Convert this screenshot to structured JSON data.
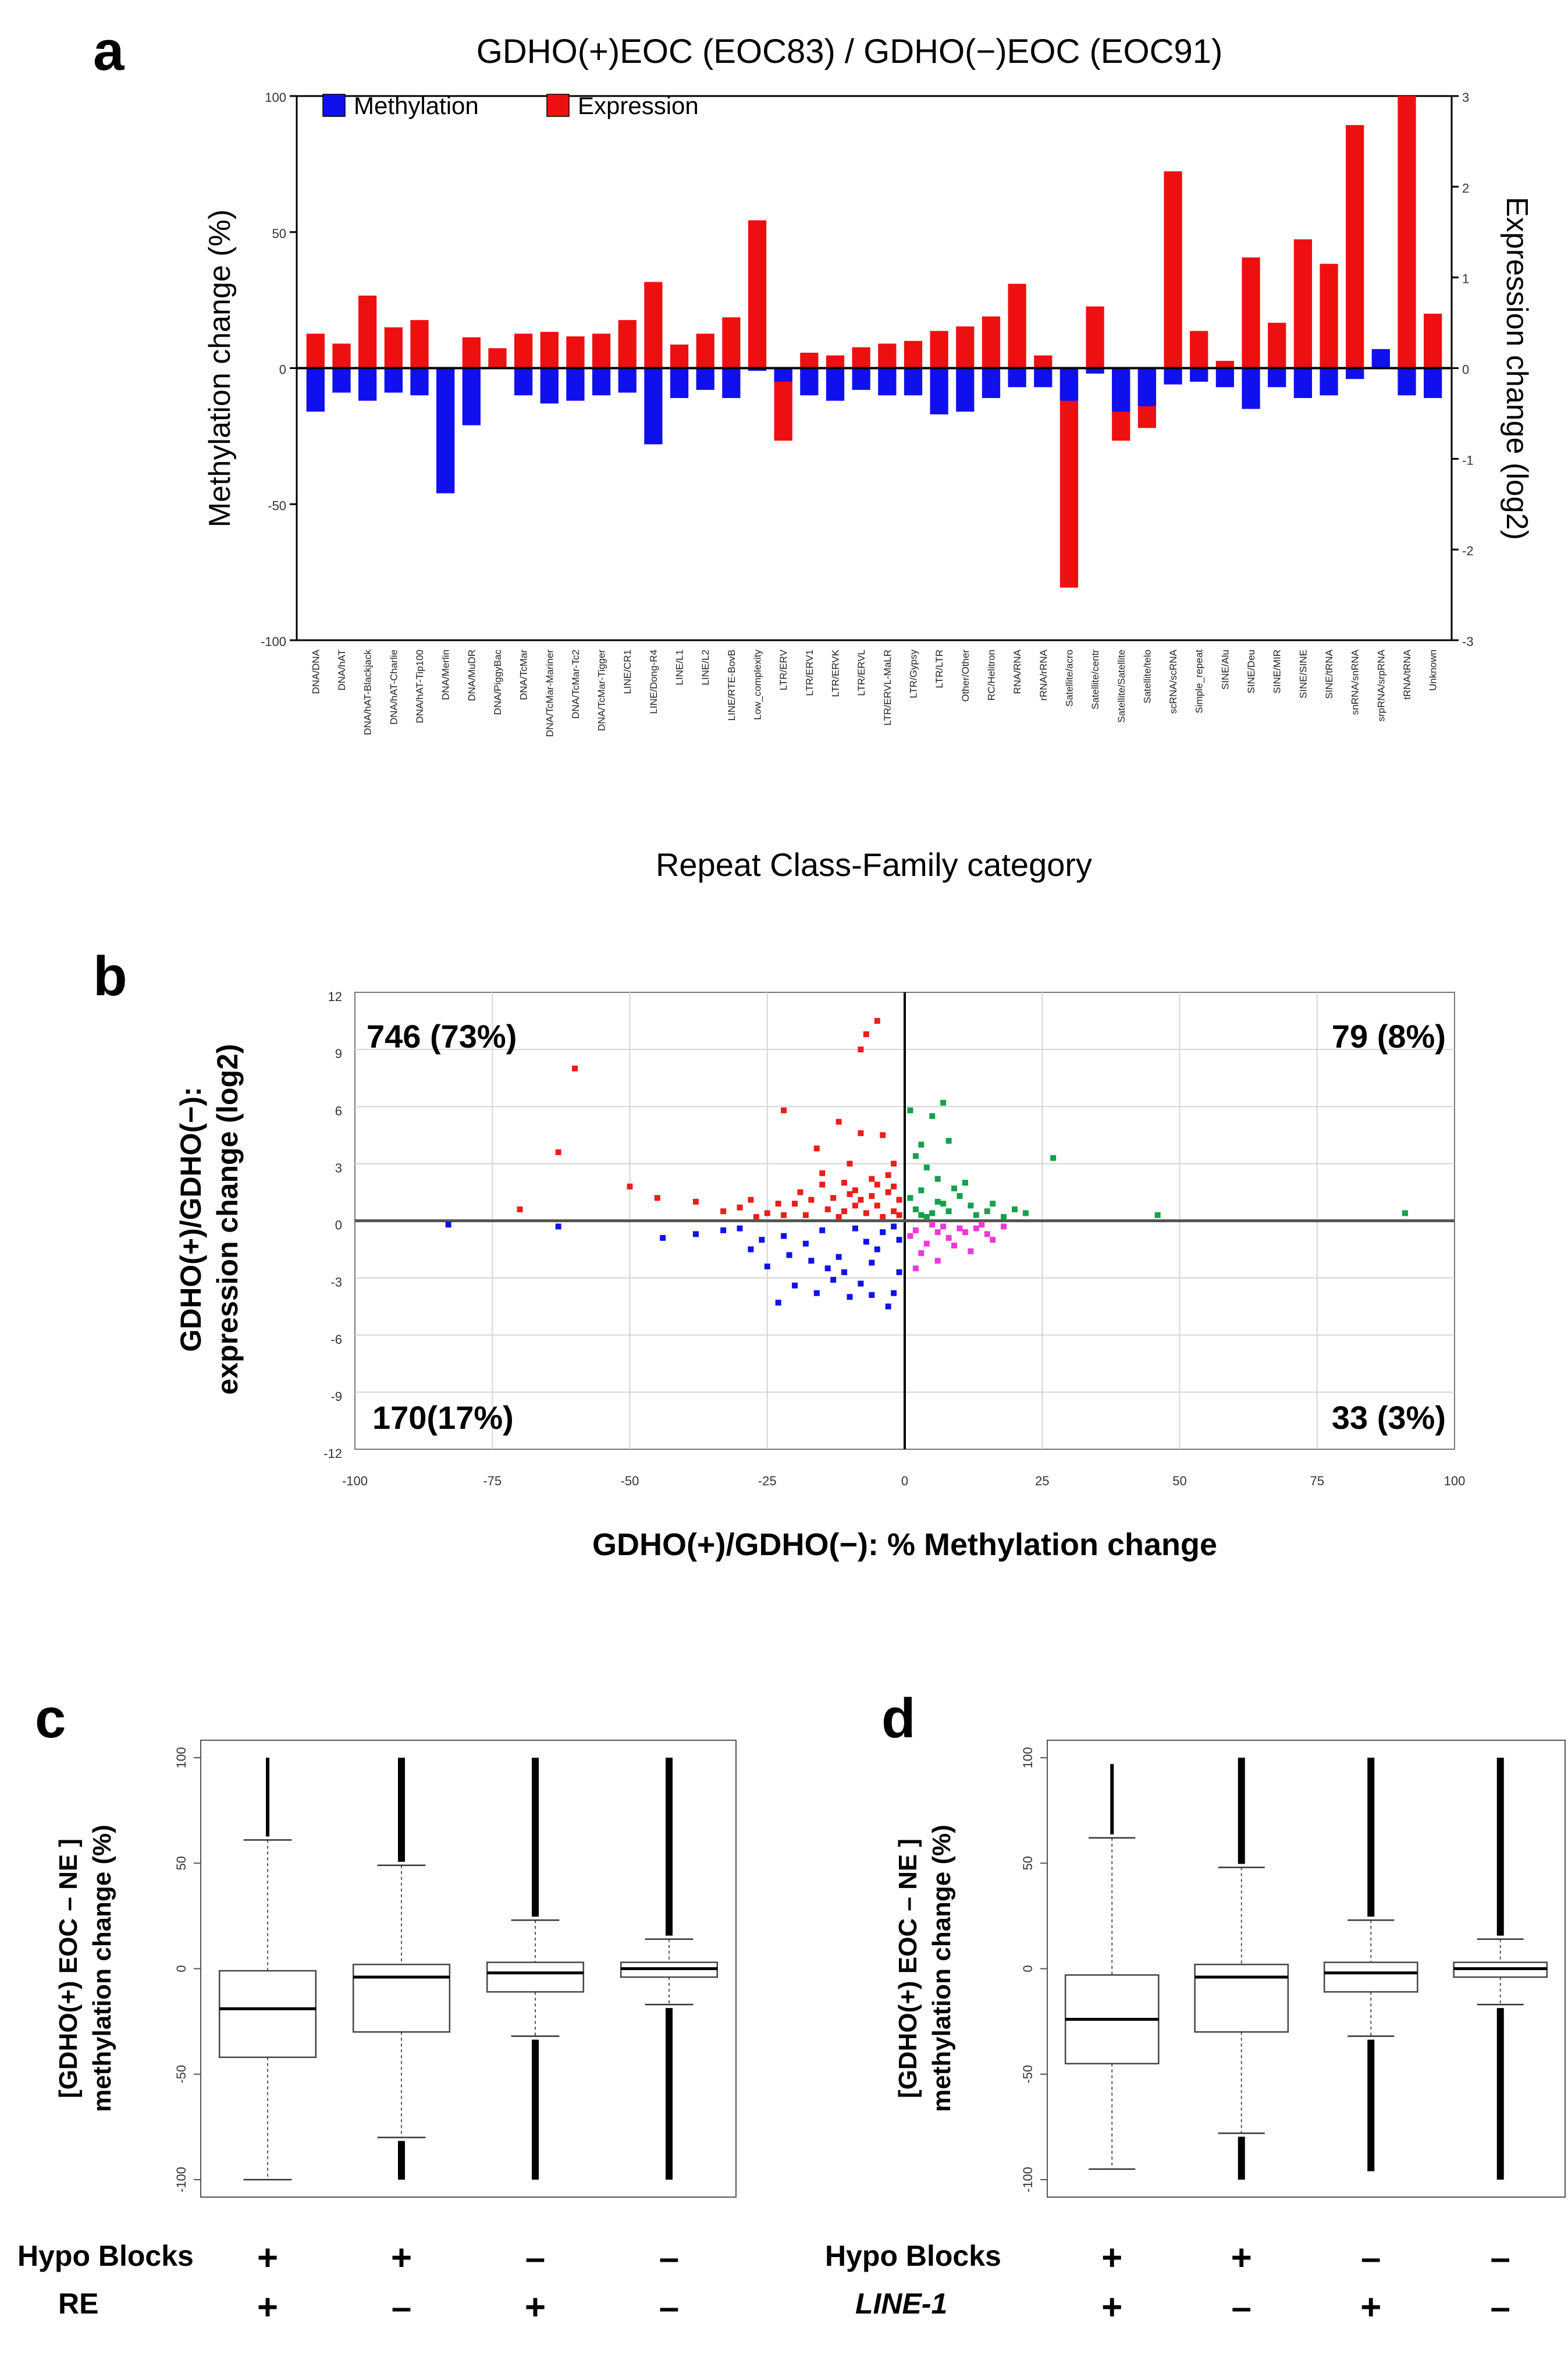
{
  "panels": {
    "a": "a",
    "b": "b",
    "c": "c",
    "d": "d"
  },
  "chart_data": [
    {
      "id": "a",
      "type": "bar",
      "title": "GDHO(+)EOC (EOC83) / GDHO(−)EOC (EOC91)",
      "xlabel": "Repeat Class-Family category",
      "ylabel": "Methylation change (%)",
      "y2label": "Expression change  (log2)",
      "ylim": [
        -100,
        100
      ],
      "y2lim": [
        -3,
        3
      ],
      "yticks": [
        100,
        50,
        0,
        -50,
        -100
      ],
      "y2ticks": [
        3,
        2,
        1,
        0,
        -1,
        -2,
        -3
      ],
      "legend": [
        "Methylation",
        "Expression"
      ],
      "colors": {
        "Methylation": "#1010ee",
        "Expression": "#ee1010"
      },
      "categories": [
        "DNA/DNA",
        "DNA/hAT",
        "DNA/hAT-Blackjack",
        "DNA/hAT-Charlie",
        "DNA/hAT-Tip100",
        "DNA/Merlin",
        "DNA/MuDR",
        "DNA/PiggyBac",
        "DNA/TcMar",
        "DNA/TcMar-Mariner",
        "DNA/TcMar-Tc2",
        "DNA/TcMar-Tigger",
        "LINE/CR1",
        "LINE/Dong-R4",
        "LINE/L1",
        "LINE/L2",
        "LINE/RTE-BovB",
        "Low_complexity",
        "LTR/ERV",
        "LTR/ERV1",
        "LTR/ERVK",
        "LTR/ERVL",
        "LTR/ERVL-MaLR",
        "LTR/Gypsy",
        "LTR/LTR",
        "Other/Other",
        "RC/Helitron",
        "RNA/RNA",
        "rRNA/rRNA",
        "Satellite/acro",
        "Satellite/centr",
        "Satellite/Satellite",
        "Satellite/telo",
        "scRNA/scRNA",
        "Simple_repeat",
        "SINE/Alu",
        "SINE/Deu",
        "SINE/MIR",
        "SINE/SINE",
        "SINE/tRNA",
        "snRNA/snRNA",
        "srpRNA/srpRNA",
        "tRNA/tRNA",
        "Unknown"
      ],
      "series": [
        {
          "name": "Methylation",
          "axis": "left",
          "values": [
            -16,
            -9,
            -12,
            -9,
            -10,
            -46,
            -21,
            0,
            -10,
            -13,
            -12,
            -10,
            -9,
            -28,
            -11,
            -8,
            -11,
            -1,
            -5,
            -10,
            -12,
            -8,
            -10,
            -10,
            -17,
            -16,
            -11,
            -7,
            -7,
            -12,
            -2,
            -16,
            -14,
            -6,
            -5,
            -7,
            -15,
            -7,
            -11,
            -10,
            -4,
            7,
            -10,
            -11
          ]
        },
        {
          "name": "Expression",
          "axis": "right",
          "values": [
            0.38,
            0.27,
            0.8,
            0.45,
            0.53,
            -1.35,
            0.34,
            0.22,
            0.38,
            0.4,
            0.35,
            0.38,
            0.53,
            0.95,
            0.26,
            0.38,
            0.56,
            1.63,
            -0.8,
            0.17,
            0.14,
            0.23,
            0.27,
            0.3,
            0.41,
            0.46,
            0.57,
            0.93,
            0.14,
            -2.42,
            0.68,
            -0.8,
            -0.66,
            2.17,
            0.41,
            0.08,
            1.22,
            0.5,
            1.42,
            1.15,
            2.68,
            0.12,
            3.0,
            0.6
          ]
        }
      ]
    },
    {
      "id": "b",
      "type": "scatter",
      "xlabel": "GDHO(+)/GDHO(−):  % Methylation change",
      "ylabel_line1": "GDHO(+)/GDHO(−):",
      "ylabel_line2": "expression change (log2)",
      "xlim": [
        -100,
        100
      ],
      "ylim": [
        -12,
        12
      ],
      "xticks": [
        -100,
        -75,
        -50,
        -25,
        0,
        25,
        50,
        75,
        100
      ],
      "yticks": [
        12,
        9,
        6,
        3,
        0,
        -3,
        -6,
        -9,
        -12
      ],
      "quadrant_labels": [
        {
          "text": "746 (73%)",
          "quadrant": "top-left",
          "color": "#ee1c1c"
        },
        {
          "text": "79 (8%)",
          "quadrant": "top-right",
          "color": "#16a04a"
        },
        {
          "text": "170(17%)",
          "quadrant": "bottom-left",
          "color": "#1a7fd0"
        },
        {
          "text": "33 (3%)",
          "quadrant": "bottom-right",
          "color": "#ee38d8"
        }
      ],
      "series": [
        {
          "name": "hypo-up",
          "color": "#ee1c1c",
          "points": [
            [
              -5,
              10.5
            ],
            [
              -7,
              9.8
            ],
            [
              -8,
              9
            ],
            [
              -60,
              8
            ],
            [
              -63,
              3.6
            ],
            [
              -22,
              5.8
            ],
            [
              -12,
              5.2
            ],
            [
              -16,
              3.8
            ],
            [
              -4,
              4.5
            ],
            [
              -8,
              4.6
            ],
            [
              -10,
              3
            ],
            [
              -2,
              3
            ],
            [
              -6,
              2.2
            ],
            [
              -15,
              1.9
            ],
            [
              -3,
              1.5
            ],
            [
              -13,
              1.2
            ],
            [
              -9,
              0.8
            ],
            [
              -11,
              0.5
            ],
            [
              -70,
              0.6
            ],
            [
              -50,
              1.8
            ],
            [
              -45,
              1.2
            ],
            [
              -38,
              1
            ],
            [
              -30,
              0.7
            ],
            [
              -25,
              0.4
            ],
            [
              -20,
              0.9
            ],
            [
              -18,
              0.3
            ],
            [
              -14,
              0.6
            ],
            [
              -7,
              0.4
            ],
            [
              -5,
              0.8
            ],
            [
              -2,
              0.5
            ],
            [
              -1,
              1.1
            ],
            [
              -4,
              0.2
            ],
            [
              -19,
              1.5
            ],
            [
              -27,
              0.2
            ],
            [
              -33,
              0.5
            ],
            [
              -22,
              0.3
            ],
            [
              -17,
              1.1
            ],
            [
              -12,
              0.2
            ],
            [
              -9,
              1.6
            ],
            [
              -6,
              1.3
            ],
            [
              -3,
              2.4
            ],
            [
              -2,
              1.8
            ],
            [
              -1,
              0.3
            ],
            [
              -23,
              0.9
            ],
            [
              -28,
              1.1
            ],
            [
              -15,
              2.5
            ],
            [
              -11,
              2
            ],
            [
              -8,
              1.1
            ],
            [
              -5,
              1.9
            ],
            [
              -10,
              1.4
            ]
          ]
        },
        {
          "name": "hyper-up",
          "color": "#16a04a",
          "points": [
            [
              1,
              5.8
            ],
            [
              7,
              6.2
            ],
            [
              5,
              5.5
            ],
            [
              3,
              4
            ],
            [
              8,
              4.2
            ],
            [
              2,
              3.4
            ],
            [
              4,
              2.8
            ],
            [
              6,
              2.2
            ],
            [
              27,
              3.3
            ],
            [
              10,
              1.3
            ],
            [
              12,
              0.8
            ],
            [
              15,
              0.5
            ],
            [
              20,
              0.6
            ],
            [
              22,
              0.4
            ],
            [
              46,
              0.3
            ],
            [
              91,
              0.4
            ],
            [
              3,
              1.6
            ],
            [
              6,
              1
            ],
            [
              8,
              0.5
            ],
            [
              2,
              0.6
            ],
            [
              11,
              2
            ],
            [
              4,
              0.2
            ],
            [
              9,
              1.7
            ],
            [
              13,
              0.3
            ],
            [
              1,
              1.2
            ],
            [
              7,
              0.9
            ],
            [
              5,
              0.4
            ],
            [
              18,
              0.2
            ],
            [
              16,
              0.9
            ],
            [
              3,
              0.3
            ]
          ]
        },
        {
          "name": "hypo-down",
          "color": "#1010ee",
          "points": [
            [
              -83,
              -0.2
            ],
            [
              -63,
              -0.3
            ],
            [
              -44,
              -0.9
            ],
            [
              -38,
              -0.7
            ],
            [
              -33,
              -0.5
            ],
            [
              -28,
              -1.5
            ],
            [
              -25,
              -2.4
            ],
            [
              -23,
              -4.3
            ],
            [
              -20,
              -3.4
            ],
            [
              -16,
              -3.8
            ],
            [
              -14,
              -2.5
            ],
            [
              -10,
              -4
            ],
            [
              -8,
              -3.3
            ],
            [
              -6,
              -2.2
            ],
            [
              -5,
              -1.5
            ],
            [
              -3,
              -4.5
            ],
            [
              -2,
              -3.8
            ],
            [
              -1,
              -2.7
            ],
            [
              -12,
              -1.9
            ],
            [
              -18,
              -1.2
            ],
            [
              -22,
              -0.8
            ],
            [
              -26,
              -1
            ],
            [
              -30,
              -0.4
            ],
            [
              -4,
              -0.6
            ],
            [
              -7,
              -1.1
            ],
            [
              -9,
              -0.4
            ],
            [
              -15,
              -0.5
            ],
            [
              -11,
              -2.7
            ],
            [
              -13,
              -3.1
            ],
            [
              -1,
              -1
            ],
            [
              -2,
              -0.3
            ],
            [
              -17,
              -2.1
            ],
            [
              -21,
              -1.8
            ],
            [
              -6,
              -3.9
            ]
          ]
        },
        {
          "name": "hyper-down",
          "color": "#ee38d8",
          "points": [
            [
              2,
              -0.5
            ],
            [
              4,
              -1.2
            ],
            [
              6,
              -2.1
            ],
            [
              8,
              -0.9
            ],
            [
              10,
              -0.4
            ],
            [
              12,
              -1.6
            ],
            [
              15,
              -0.7
            ],
            [
              18,
              -0.3
            ],
            [
              5,
              -0.2
            ],
            [
              3,
              -1.7
            ],
            [
              1,
              -0.8
            ],
            [
              7,
              -0.3
            ],
            [
              9,
              -1.3
            ],
            [
              11,
              -0.6
            ],
            [
              14,
              -0.2
            ],
            [
              16,
              -1
            ],
            [
              13,
              -0.4
            ],
            [
              2,
              -2.5
            ],
            [
              6,
              -0.6
            ]
          ]
        }
      ]
    },
    {
      "id": "c",
      "type": "box",
      "ylabel_line1": "[GDHO(+) EOC – NE ]",
      "ylabel_line2": "methylation change (%)",
      "ylim": [
        -100,
        100
      ],
      "yticks": [
        100,
        50,
        0,
        -50,
        -100
      ],
      "row_labels": [
        "Hypo Blocks",
        "RE"
      ],
      "groups": [
        {
          "labels": [
            "+",
            "+"
          ],
          "q1": -42,
          "median": -19,
          "q3": -1,
          "whisker_low": -100,
          "whisker_high": 61,
          "outlier_max": 100
        },
        {
          "labels": [
            "+",
            "–"
          ],
          "q1": -30,
          "median": -4,
          "q3": 2,
          "whisker_low": -80,
          "whisker_high": 49,
          "outlier_max": 100,
          "outlier_min": -100
        },
        {
          "labels": [
            "–",
            "+"
          ],
          "q1": -11,
          "median": -2,
          "q3": 3,
          "whisker_low": -32,
          "whisker_high": 23,
          "outlier_max": 100,
          "outlier_min": -100
        },
        {
          "labels": [
            "–",
            "–"
          ],
          "q1": -4,
          "median": 0,
          "q3": 3,
          "whisker_low": -17,
          "whisker_high": 14,
          "outlier_max": 100,
          "outlier_min": -100
        }
      ]
    },
    {
      "id": "d",
      "type": "box",
      "ylabel_line1": "[GDHO(+) EOC – NE ]",
      "ylabel_line2": "methylation change (%)",
      "ylim": [
        -100,
        100
      ],
      "yticks": [
        100,
        50,
        0,
        -50,
        -100
      ],
      "row_labels": [
        "Hypo Blocks",
        "LINE-1"
      ],
      "groups": [
        {
          "labels": [
            "+",
            "+"
          ],
          "q1": -45,
          "median": -24,
          "q3": -3,
          "whisker_low": -95,
          "whisker_high": 62,
          "outlier_max": 97
        },
        {
          "labels": [
            "+",
            "–"
          ],
          "q1": -30,
          "median": -4,
          "q3": 2,
          "whisker_low": -78,
          "whisker_high": 48,
          "outlier_max": 100,
          "outlier_min": -100
        },
        {
          "labels": [
            "–",
            "+"
          ],
          "q1": -11,
          "median": -2,
          "q3": 3,
          "whisker_low": -32,
          "whisker_high": 23,
          "outlier_max": 100,
          "outlier_min": -96
        },
        {
          "labels": [
            "–",
            "–"
          ],
          "q1": -4,
          "median": 0,
          "q3": 3,
          "whisker_low": -17,
          "whisker_high": 14,
          "outlier_max": 100,
          "outlier_min": -100
        }
      ]
    }
  ]
}
